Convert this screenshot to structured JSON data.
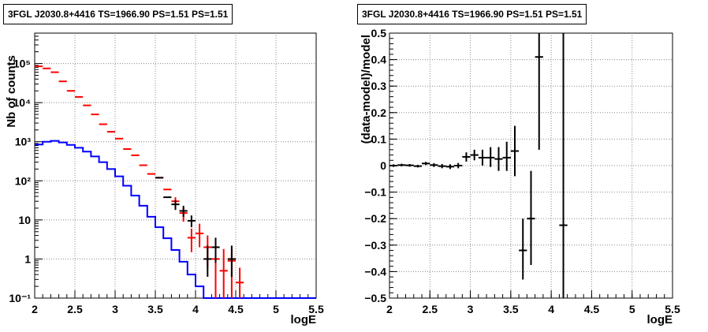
{
  "chart_data": [
    {
      "type": "line",
      "title": "3FGL J2030.8+4416 TS=1966.90 PS=1.51 PS=1.51",
      "xlabel": "logE",
      "ylabel": "Nb of counts",
      "xlim": [
        2,
        5.5
      ],
      "ylim": [
        0.1,
        600000
      ],
      "yscale": "log",
      "grid": true,
      "xticks": [
        "2",
        "2.5",
        "3",
        "3.5",
        "4",
        "4.5",
        "5",
        "5.5"
      ],
      "yticks": [
        {
          "value": 0.1,
          "label": "10⁻¹"
        },
        {
          "value": 1,
          "label": "1"
        },
        {
          "value": 10,
          "label": "10"
        },
        {
          "value": 100,
          "label": "10²"
        },
        {
          "value": 1000,
          "label": "10³"
        },
        {
          "value": 10000,
          "label": "10⁴"
        },
        {
          "value": 100000,
          "label": "10⁵"
        }
      ],
      "model_step": {
        "color": "#0000ff",
        "edges": [
          2.0,
          2.1,
          2.2,
          2.3,
          2.4,
          2.5,
          2.6,
          2.7,
          2.8,
          2.9,
          3.0,
          3.1,
          3.2,
          3.3,
          3.4,
          3.5,
          3.6,
          3.7,
          3.8,
          3.9,
          4.0,
          4.1,
          4.2,
          4.3,
          4.4,
          4.5,
          4.6,
          4.7,
          4.8,
          4.9,
          5.0,
          5.1,
          5.2,
          5.3,
          5.4,
          5.5
        ],
        "values": [
          850,
          1000,
          1050,
          960,
          830,
          700,
          560,
          420,
          300,
          200,
          130,
          75,
          42,
          23,
          12,
          6.5,
          3.4,
          1.7,
          0.85,
          0.4,
          0.2,
          0.1,
          0.1,
          0.1,
          0.1,
          0.1,
          0.1,
          0.1,
          0.1,
          0.1,
          0.1,
          0.1,
          0.1,
          0.1,
          0.1
        ]
      },
      "series": [
        {
          "name": "",
          "color": "#ff0000",
          "points": [
            {
              "x": 2.05,
              "y": 85000
            },
            {
              "x": 2.15,
              "y": 75000
            },
            {
              "x": 2.25,
              "y": 60000
            },
            {
              "x": 2.35,
              "y": 35000
            },
            {
              "x": 2.45,
              "y": 20000
            },
            {
              "x": 2.55,
              "y": 14000
            },
            {
              "x": 2.65,
              "y": 8500
            },
            {
              "x": 2.75,
              "y": 5000
            },
            {
              "x": 2.85,
              "y": 2800
            },
            {
              "x": 2.95,
              "y": 1800
            },
            {
              "x": 3.05,
              "y": 1200
            },
            {
              "x": 3.15,
              "y": 650
            },
            {
              "x": 3.25,
              "y": 450
            },
            {
              "x": 3.35,
              "y": 250
            },
            {
              "x": 3.45,
              "y": 150
            },
            {
              "x": 3.55,
              "y": 120
            },
            {
              "x": 3.65,
              "y": 60
            },
            {
              "x": 3.75,
              "y": 30,
              "ylo": 22,
              "yhi": 38
            },
            {
              "x": 3.85,
              "y": 15,
              "ylo": 9,
              "yhi": 20
            },
            {
              "x": 3.95,
              "y": 3.5,
              "ylo": 1.5,
              "yhi": 6
            },
            {
              "x": 4.05,
              "y": 4.5,
              "ylo": 2,
              "yhi": 8
            },
            {
              "x": 4.15,
              "y": 2,
              "ylo": 0.6,
              "yhi": 4
            },
            {
              "x": 4.25,
              "y": 1,
              "ylo": 0.1,
              "yhi": 2.5
            },
            {
              "x": 4.35,
              "y": 0.5,
              "ylo": 0.1,
              "yhi": 1.8
            },
            {
              "x": 4.45,
              "y": 0.9,
              "ylo": 0.1,
              "yhi": 1.8
            },
            {
              "x": 4.55,
              "y": 0.25,
              "ylo": 0.1,
              "yhi": 0.6
            }
          ]
        },
        {
          "name": "",
          "color": "#000000",
          "points": [
            {
              "x": 3.55,
              "y": 120
            },
            {
              "x": 3.65,
              "y": 38
            },
            {
              "x": 3.75,
              "y": 25,
              "ylo": 18,
              "yhi": 32
            },
            {
              "x": 3.85,
              "y": 17,
              "ylo": 12,
              "yhi": 23
            },
            {
              "x": 3.95,
              "y": 9.5,
              "ylo": 6.5,
              "yhi": 13
            },
            {
              "x": 4.15,
              "y": 1,
              "ylo": 0.35,
              "yhi": 2.2
            },
            {
              "x": 4.25,
              "y": 2,
              "ylo": 0.8,
              "yhi": 3.5
            },
            {
              "x": 4.45,
              "y": 1,
              "ylo": 0.35,
              "yhi": 2.2
            }
          ]
        }
      ]
    },
    {
      "type": "scatter",
      "title": "3FGL J2030.8+4416 TS=1966.90 PS=1.51 PS=1.51",
      "xlabel": "logE",
      "ylabel": "(data-model)/model",
      "xlim": [
        2,
        5.5
      ],
      "ylim": [
        -0.5,
        0.5
      ],
      "grid": true,
      "xticks": [
        "2",
        "2.5",
        "3",
        "3.5",
        "4",
        "4.5",
        "5",
        "5.5"
      ],
      "yticks": [
        "−0.5",
        "−0.4",
        "−0.3",
        "−0.2",
        "−0.1",
        "0",
        "0.1",
        "0.2",
        "0.3",
        "0.4",
        "0.5"
      ],
      "series": [
        {
          "name": "",
          "color": "#000000",
          "points": [
            {
              "x": 2.05,
              "y": 0.0,
              "ylo": -0.005,
              "yhi": 0.005
            },
            {
              "x": 2.15,
              "y": 0.002,
              "ylo": -0.003,
              "yhi": 0.007
            },
            {
              "x": 2.25,
              "y": 0.001,
              "ylo": -0.004,
              "yhi": 0.006
            },
            {
              "x": 2.35,
              "y": -0.002,
              "ylo": -0.007,
              "yhi": 0.003
            },
            {
              "x": 2.45,
              "y": 0.008,
              "ylo": 0.002,
              "yhi": 0.014
            },
            {
              "x": 2.55,
              "y": 0.002,
              "ylo": -0.005,
              "yhi": 0.009
            },
            {
              "x": 2.65,
              "y": -0.002,
              "ylo": -0.01,
              "yhi": 0.006
            },
            {
              "x": 2.75,
              "y": -0.004,
              "ylo": -0.013,
              "yhi": 0.005
            },
            {
              "x": 2.85,
              "y": 0.0,
              "ylo": -0.01,
              "yhi": 0.01
            },
            {
              "x": 2.95,
              "y": 0.033,
              "ylo": 0.015,
              "yhi": 0.05
            },
            {
              "x": 3.05,
              "y": 0.04,
              "ylo": 0.02,
              "yhi": 0.06
            },
            {
              "x": 3.15,
              "y": 0.03,
              "ylo": 0.0,
              "yhi": 0.06
            },
            {
              "x": 3.25,
              "y": 0.03,
              "ylo": -0.005,
              "yhi": 0.07
            },
            {
              "x": 3.35,
              "y": 0.025,
              "ylo": -0.02,
              "yhi": 0.07
            },
            {
              "x": 3.45,
              "y": 0.03,
              "ylo": -0.02,
              "yhi": 0.09
            },
            {
              "x": 3.55,
              "y": 0.055,
              "ylo": -0.04,
              "yhi": 0.15
            },
            {
              "x": 3.65,
              "y": -0.32,
              "ylo": -0.43,
              "yhi": -0.2
            },
            {
              "x": 3.75,
              "y": -0.2,
              "ylo": -0.375,
              "yhi": -0.02
            },
            {
              "x": 3.85,
              "y": 0.41,
              "ylo": 0.06,
              "yhi": 0.5
            },
            {
              "x": 4.15,
              "y": -0.225,
              "ylo": -0.5,
              "yhi": 0.5
            }
          ]
        }
      ]
    }
  ]
}
